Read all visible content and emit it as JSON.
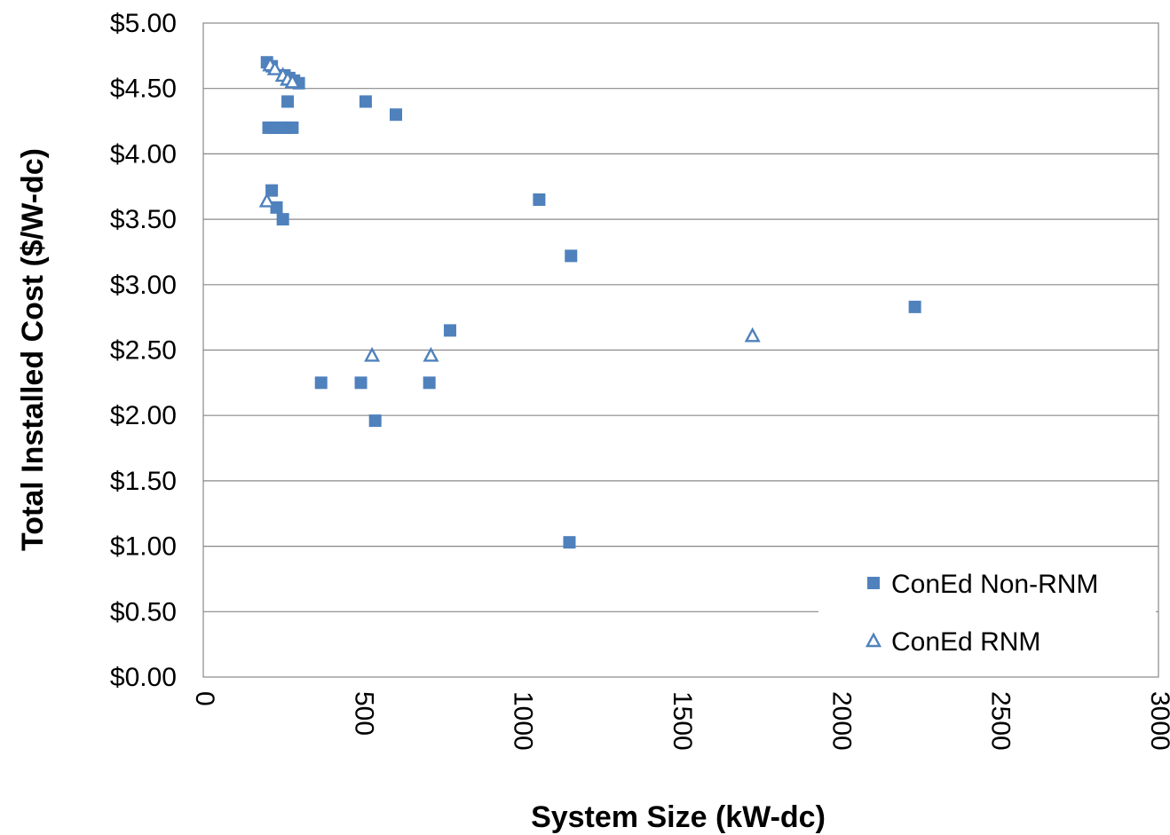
{
  "chart_data": {
    "type": "scatter",
    "title": "",
    "xlabel": "System Size (kW-dc)",
    "ylabel": "Total Installed Cost ($/W-dc)",
    "xlim": [
      0,
      3000
    ],
    "ylim": [
      0,
      5
    ],
    "x_ticks": [
      0,
      500,
      1000,
      1500,
      2000,
      2500,
      3000
    ],
    "x_tick_labels": [
      "0",
      "500",
      "1000",
      "1500",
      "2000",
      "2500",
      "3000"
    ],
    "y_ticks": [
      0,
      0.5,
      1,
      1.5,
      2,
      2.5,
      3,
      3.5,
      4,
      4.5,
      5
    ],
    "y_tick_labels": [
      "$0.00",
      "$0.50",
      "$1.00",
      "$1.50",
      "$2.00",
      "$2.50",
      "$3.00",
      "$3.50",
      "$4.00",
      "$4.50",
      "$5.00"
    ],
    "grid": "horizontal",
    "legend_position": "bottom-right",
    "series": [
      {
        "name": "ConEd Non-RNM",
        "marker": "filled-square",
        "color": "#4F81BD",
        "points": [
          [
            200,
            4.7
          ],
          [
            215,
            4.67
          ],
          [
            255,
            4.6
          ],
          [
            270,
            4.58
          ],
          [
            285,
            4.56
          ],
          [
            300,
            4.54
          ],
          [
            265,
            4.4
          ],
          [
            510,
            4.4
          ],
          [
            605,
            4.3
          ],
          [
            205,
            4.2
          ],
          [
            225,
            4.2
          ],
          [
            245,
            4.2
          ],
          [
            265,
            4.2
          ],
          [
            280,
            4.2
          ],
          [
            215,
            3.72
          ],
          [
            230,
            3.59
          ],
          [
            250,
            3.5
          ],
          [
            1055,
            3.65
          ],
          [
            1155,
            3.22
          ],
          [
            2235,
            2.83
          ],
          [
            775,
            2.65
          ],
          [
            370,
            2.25
          ],
          [
            495,
            2.25
          ],
          [
            710,
            2.25
          ],
          [
            540,
            1.96
          ],
          [
            1150,
            1.03
          ]
        ]
      },
      {
        "name": "ConEd RNM",
        "marker": "hollow-triangle",
        "color": "#4F81BD",
        "points": [
          [
            210,
            4.68
          ],
          [
            225,
            4.65
          ],
          [
            250,
            4.6
          ],
          [
            265,
            4.57
          ],
          [
            280,
            4.55
          ],
          [
            200,
            3.64
          ],
          [
            530,
            2.46
          ],
          [
            715,
            2.46
          ],
          [
            1725,
            2.61
          ]
        ]
      }
    ]
  }
}
